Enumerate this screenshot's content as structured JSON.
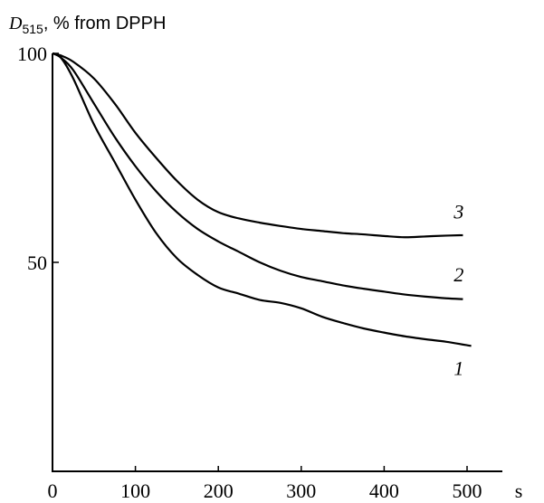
{
  "chart_data": {
    "type": "line",
    "ylabel_main": "D",
    "ylabel_sub": "515",
    "ylabel_rest": ", % from DPPH",
    "xlabel": "s",
    "xlim": [
      0,
      500
    ],
    "ylim": [
      0,
      100
    ],
    "x_ticks": [
      0,
      100,
      200,
      300,
      400,
      500
    ],
    "x_tick_labels": [
      "0",
      "100",
      "200",
      "300",
      "400",
      "500"
    ],
    "y_ticks": [
      50,
      100
    ],
    "y_tick_labels": [
      "50",
      "100"
    ],
    "grid": false,
    "series": [
      {
        "name": "1",
        "points": [
          [
            0,
            100
          ],
          [
            10,
            99
          ],
          [
            25,
            94
          ],
          [
            50,
            83
          ],
          [
            75,
            74
          ],
          [
            100,
            65
          ],
          [
            125,
            57
          ],
          [
            150,
            51
          ],
          [
            175,
            47
          ],
          [
            200,
            44
          ],
          [
            225,
            42.5
          ],
          [
            250,
            41
          ],
          [
            275,
            40.3
          ],
          [
            300,
            39
          ],
          [
            325,
            37
          ],
          [
            350,
            35.5
          ],
          [
            375,
            34.2
          ],
          [
            400,
            33.2
          ],
          [
            425,
            32.3
          ],
          [
            450,
            31.6
          ],
          [
            475,
            31
          ],
          [
            505,
            30
          ]
        ]
      },
      {
        "name": "2",
        "points": [
          [
            0,
            100
          ],
          [
            10,
            99
          ],
          [
            25,
            96
          ],
          [
            50,
            88
          ],
          [
            75,
            80
          ],
          [
            100,
            73
          ],
          [
            125,
            67
          ],
          [
            150,
            62
          ],
          [
            175,
            58
          ],
          [
            200,
            55
          ],
          [
            225,
            52.5
          ],
          [
            250,
            50
          ],
          [
            275,
            48
          ],
          [
            300,
            46.5
          ],
          [
            325,
            45.5
          ],
          [
            350,
            44.5
          ],
          [
            375,
            43.7
          ],
          [
            400,
            43
          ],
          [
            425,
            42.3
          ],
          [
            450,
            41.8
          ],
          [
            475,
            41.4
          ],
          [
            495,
            41.2
          ]
        ]
      },
      {
        "name": "3",
        "points": [
          [
            0,
            100
          ],
          [
            10,
            99.5
          ],
          [
            25,
            98
          ],
          [
            50,
            94
          ],
          [
            75,
            88
          ],
          [
            100,
            81
          ],
          [
            125,
            75
          ],
          [
            150,
            69.5
          ],
          [
            175,
            65
          ],
          [
            200,
            62
          ],
          [
            225,
            60.5
          ],
          [
            250,
            59.5
          ],
          [
            275,
            58.7
          ],
          [
            300,
            58
          ],
          [
            325,
            57.5
          ],
          [
            350,
            57
          ],
          [
            375,
            56.7
          ],
          [
            400,
            56.3
          ],
          [
            425,
            56
          ],
          [
            450,
            56.2
          ],
          [
            475,
            56.4
          ],
          [
            495,
            56.5
          ]
        ]
      }
    ],
    "curve_labels": [
      {
        "text": "3",
        "x": 490,
        "y": 60.5
      },
      {
        "text": "2",
        "x": 490,
        "y": 45.5
      },
      {
        "text": "1",
        "x": 490,
        "y": 23
      }
    ]
  }
}
